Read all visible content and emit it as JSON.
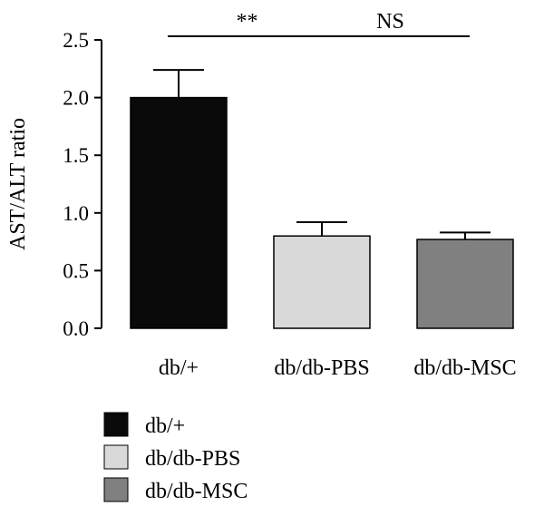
{
  "chart_data": {
    "type": "bar",
    "ylabel": "AST/ALT ratio",
    "xlabel": "",
    "ylim": [
      0,
      2.5
    ],
    "yticks": [
      "0.0",
      "0.5",
      "1.0",
      "1.5",
      "2.0",
      "2.5"
    ],
    "categories": [
      "db/+",
      "db/db-PBS",
      "db/db-MSC"
    ],
    "values": [
      2.0,
      0.8,
      0.77
    ],
    "error_upper": [
      0.24,
      0.12,
      0.06
    ],
    "colors": [
      "#0a0a0a",
      "#d9d9d9",
      "#808080"
    ],
    "legend": {
      "placement": "bottom-left",
      "entries": [
        "db/+",
        "db/db-PBS",
        "db/db-MSC"
      ]
    },
    "annotations": [
      {
        "text": "**",
        "from": "db/+",
        "to": "db/db-PBS"
      },
      {
        "text": "NS",
        "from": "db/db-PBS",
        "to": "db/db-MSC"
      }
    ]
  }
}
